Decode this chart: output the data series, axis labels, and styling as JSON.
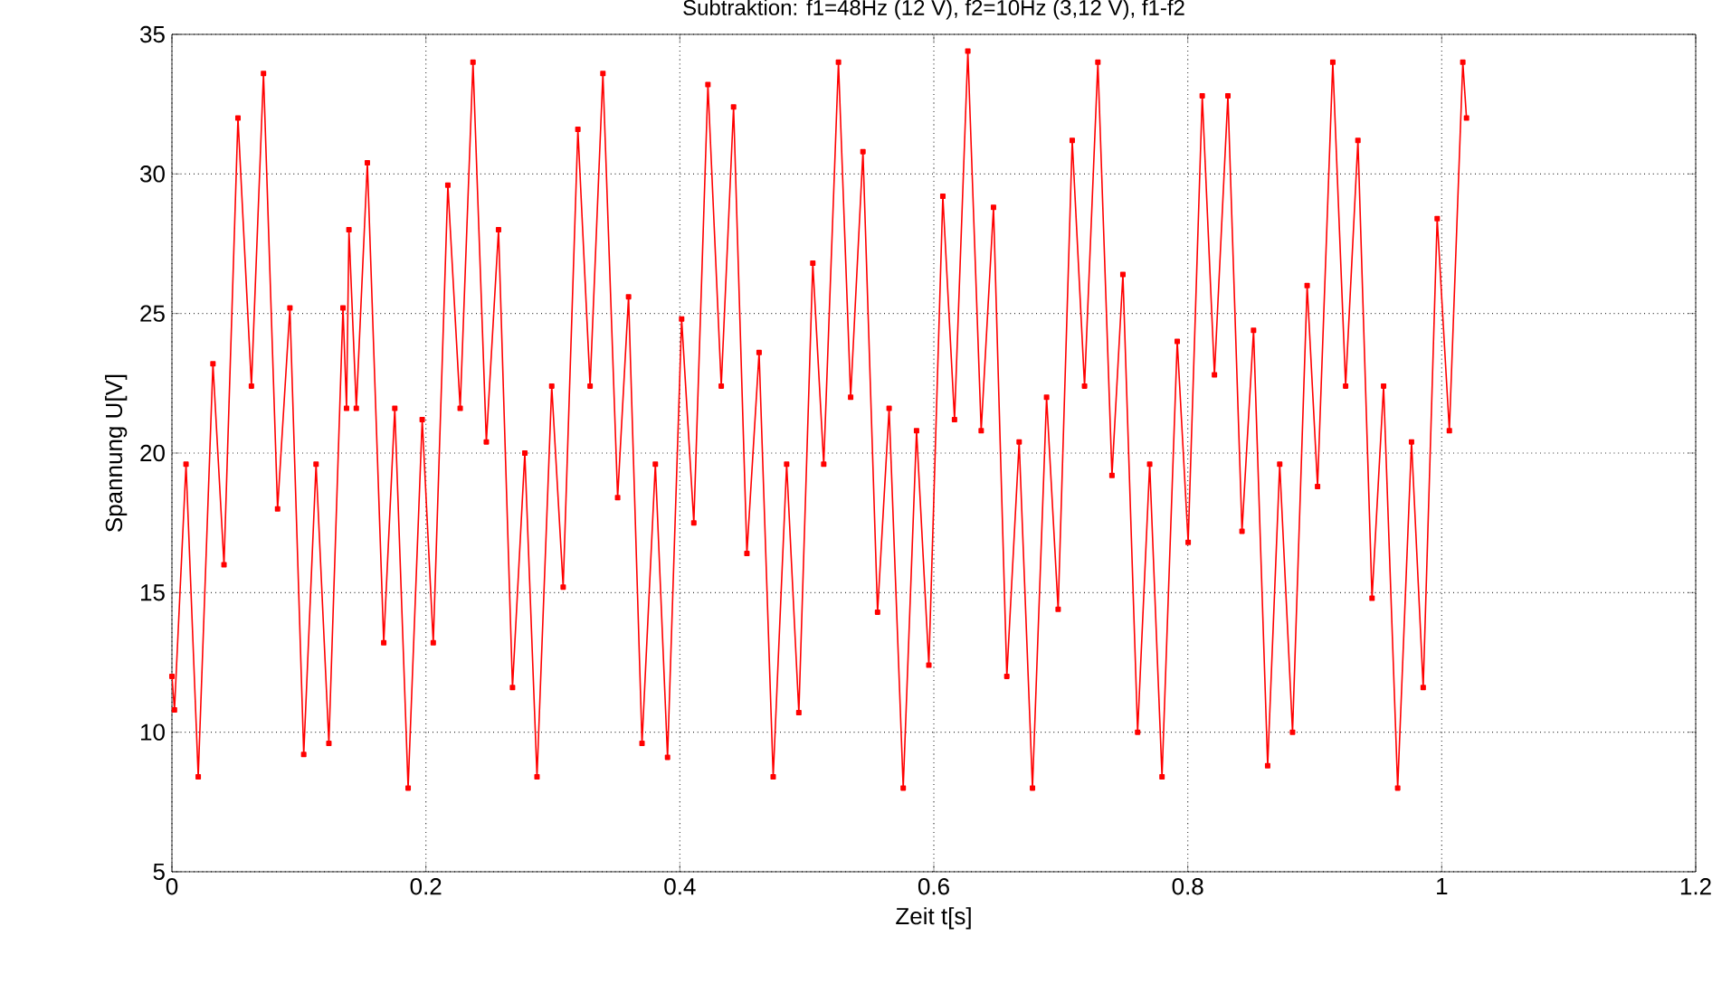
{
  "chart_data": {
    "type": "line",
    "title": "Subtraktion: f1=48Hz (12 V), f2=10Hz (3,12 V), f1-f2",
    "xlabel": "Zeit t[s]",
    "ylabel": "Spannung U[V]",
    "xlim": [
      0,
      1.2
    ],
    "ylim": [
      5,
      35
    ],
    "xticks": [
      0,
      0.2,
      0.4,
      0.6,
      0.8,
      1,
      1.2
    ],
    "yticks": [
      5,
      10,
      15,
      20,
      25,
      30,
      35
    ],
    "grid": true,
    "marker": "square",
    "line_style": "solid",
    "series": [
      {
        "color": "#ff0000",
        "x": [
          0,
          0.002,
          0.0111,
          0.0207,
          0.0323,
          0.041,
          0.052,
          0.0626,
          0.0721,
          0.0832,
          0.0929,
          0.1038,
          0.1135,
          0.1236,
          0.1347,
          0.1375,
          0.1394,
          0.1452,
          0.1539,
          0.1668,
          0.1755,
          0.186,
          0.1971,
          0.2058,
          0.2173,
          0.227,
          0.2371,
          0.2476,
          0.2572,
          0.2682,
          0.2779,
          0.2875,
          0.2991,
          0.3081,
          0.3197,
          0.3293,
          0.3394,
          0.351,
          0.3596,
          0.3702,
          0.3807,
          0.3903,
          0.4014,
          0.411,
          0.4221,
          0.4326,
          0.4423,
          0.4528,
          0.4624,
          0.4735,
          0.4841,
          0.4937,
          0.5047,
          0.5133,
          0.5249,
          0.5345,
          0.5442,
          0.5557,
          0.5648,
          0.5759,
          0.5864,
          0.5961,
          0.6071,
          0.6163,
          0.6268,
          0.6373,
          0.647,
          0.6575,
          0.6672,
          0.6777,
          0.6888,
          0.6979,
          0.709,
          0.7187,
          0.7292,
          0.7403,
          0.7489,
          0.7605,
          0.77,
          0.7797,
          0.7917,
          0.8003,
          0.8114,
          0.821,
          0.8316,
          0.8427,
          0.8518,
          0.8629,
          0.8724,
          0.8825,
          0.894,
          0.9022,
          0.9142,
          0.9243,
          0.934,
          0.9451,
          0.9542,
          0.9653,
          0.9762,
          0.9854,
          0.9964,
          1.006,
          1.0166,
          1.0195
        ],
        "values": [
          12.0,
          10.8,
          19.6,
          8.4,
          23.2,
          16.0,
          32.0,
          22.4,
          33.6,
          18.0,
          25.2,
          9.2,
          19.6,
          9.6,
          25.2,
          21.6,
          28.0,
          21.6,
          30.4,
          13.2,
          21.6,
          8.0,
          21.2,
          13.2,
          29.6,
          21.6,
          34.0,
          20.4,
          28.0,
          11.6,
          20.0,
          8.4,
          22.4,
          15.2,
          31.6,
          22.4,
          33.6,
          18.4,
          25.6,
          9.6,
          19.6,
          9.1,
          24.8,
          17.5,
          33.2,
          22.4,
          32.4,
          16.4,
          23.6,
          8.4,
          19.6,
          10.7,
          26.8,
          19.6,
          34.0,
          22.0,
          30.8,
          14.3,
          21.6,
          8.0,
          20.8,
          12.4,
          29.2,
          21.2,
          34.4,
          20.8,
          28.8,
          12.0,
          20.4,
          8.0,
          22.0,
          14.4,
          31.2,
          22.4,
          34.0,
          19.2,
          26.4,
          10.0,
          19.6,
          8.4,
          24.0,
          16.8,
          32.8,
          22.8,
          32.8,
          17.2,
          24.4,
          8.8,
          19.6,
          10.0,
          26.0,
          18.8,
          34.0,
          22.4,
          31.2,
          14.8,
          22.4,
          8.0,
          20.4,
          11.6,
          28.4,
          20.8,
          34.0,
          32.0
        ]
      }
    ]
  }
}
